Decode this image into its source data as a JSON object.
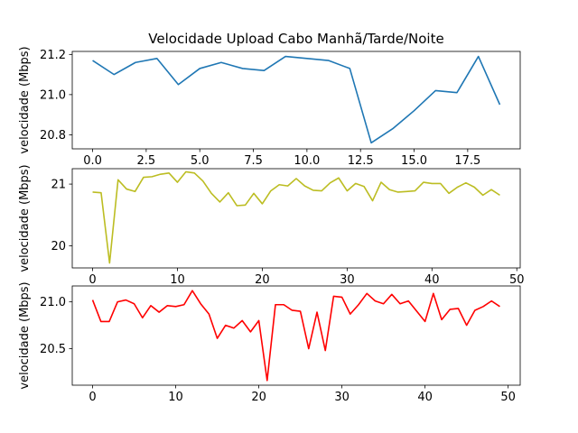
{
  "chart_data": [
    {
      "type": "line",
      "title": "Velocidade Upload Cabo Manhã/Tarde/Noite",
      "xlabel": "",
      "ylabel": "velocidade (Mbps)",
      "xlim": [
        -0.95,
        19.95
      ],
      "ylim": [
        20.73,
        21.215
      ],
      "xticks": [
        0.0,
        2.5,
        5.0,
        7.5,
        10.0,
        12.5,
        15.0,
        17.5
      ],
      "xtick_labels": [
        "0.0",
        "2.5",
        "5.0",
        "7.5",
        "10.0",
        "12.5",
        "15.0",
        "17.5"
      ],
      "yticks": [
        20.8,
        21.0,
        21.2
      ],
      "ytick_labels": [
        "20.8",
        "21.0",
        "21.2"
      ],
      "grid": false,
      "series": [
        {
          "color": "#1f77b4",
          "x": [
            0,
            1,
            2,
            3,
            4,
            5,
            6,
            7,
            8,
            9,
            10,
            11,
            12,
            13,
            14,
            15,
            16,
            17,
            18,
            19
          ],
          "y": [
            21.17,
            21.1,
            21.16,
            21.18,
            21.05,
            21.13,
            21.16,
            21.13,
            21.12,
            21.19,
            21.18,
            21.17,
            21.13,
            20.76,
            20.83,
            20.92,
            21.02,
            21.01,
            21.19,
            20.95
          ]
        }
      ]
    },
    {
      "type": "line",
      "title": "",
      "xlabel": "",
      "ylabel": "velocidade (Mbps)",
      "xlim": [
        -2.4,
        50.4
      ],
      "ylim": [
        19.64,
        21.25
      ],
      "xticks": [
        0,
        10,
        20,
        30,
        40,
        50
      ],
      "xtick_labels": [
        "0",
        "10",
        "20",
        "30",
        "40",
        "50"
      ],
      "yticks": [
        20,
        21
      ],
      "ytick_labels": [
        "20",
        "21"
      ],
      "grid": false,
      "series": [
        {
          "color": "#bcbd22",
          "x": [
            0,
            1,
            2,
            3,
            4,
            5,
            6,
            7,
            8,
            9,
            10,
            11,
            12,
            13,
            14,
            15,
            16,
            17,
            18,
            19,
            20,
            21,
            22,
            23,
            24,
            25,
            26,
            27,
            28,
            29,
            30,
            31,
            32,
            33,
            34,
            35,
            36,
            37,
            38,
            39,
            40,
            41,
            42,
            43,
            44,
            45,
            46,
            47,
            48
          ],
          "y": [
            20.87,
            20.86,
            19.72,
            21.07,
            20.92,
            20.88,
            21.11,
            21.12,
            21.16,
            21.18,
            21.03,
            21.2,
            21.18,
            21.05,
            20.85,
            20.71,
            20.86,
            20.65,
            20.66,
            20.85,
            20.68,
            20.89,
            20.99,
            20.97,
            21.09,
            20.97,
            20.9,
            20.89,
            21.02,
            21.1,
            20.89,
            21.01,
            20.96,
            20.73,
            21.03,
            20.91,
            20.87,
            20.88,
            20.89,
            21.03,
            21.01,
            21.01,
            20.85,
            20.95,
            21.02,
            20.95,
            20.82,
            20.91,
            20.82
          ]
        }
      ]
    },
    {
      "type": "line",
      "title": "",
      "xlabel": "",
      "ylabel": "velocidade (Mbps)",
      "xlim": [
        -2.45,
        51.45
      ],
      "ylim": [
        20.11,
        21.17
      ],
      "xticks": [
        0,
        10,
        20,
        30,
        40,
        50
      ],
      "xtick_labels": [
        "0",
        "10",
        "20",
        "30",
        "40",
        "50"
      ],
      "yticks": [
        20.5,
        21.0
      ],
      "ytick_labels": [
        "20.5",
        "21.0"
      ],
      "grid": false,
      "series": [
        {
          "color": "#ff0000",
          "x": [
            0,
            1,
            2,
            3,
            4,
            5,
            6,
            7,
            8,
            9,
            10,
            11,
            12,
            13,
            14,
            15,
            16,
            17,
            18,
            19,
            20,
            21,
            22,
            23,
            24,
            25,
            26,
            27,
            28,
            29,
            30,
            31,
            32,
            33,
            34,
            35,
            36,
            37,
            38,
            39,
            40,
            41,
            42,
            43,
            44,
            45,
            46,
            47,
            48,
            49
          ],
          "y": [
            21.02,
            20.79,
            20.79,
            21.0,
            21.02,
            20.98,
            20.83,
            20.96,
            20.89,
            20.96,
            20.95,
            20.97,
            21.12,
            20.98,
            20.87,
            20.61,
            20.75,
            20.72,
            20.8,
            20.68,
            20.8,
            20.16,
            20.97,
            20.97,
            20.91,
            20.9,
            20.5,
            20.89,
            20.48,
            21.06,
            21.05,
            20.87,
            20.97,
            21.09,
            21.01,
            20.98,
            21.08,
            20.98,
            21.01,
            20.9,
            20.79,
            21.09,
            20.81,
            20.92,
            20.93,
            20.75,
            20.91,
            20.95,
            21.01,
            20.95
          ]
        }
      ]
    }
  ]
}
